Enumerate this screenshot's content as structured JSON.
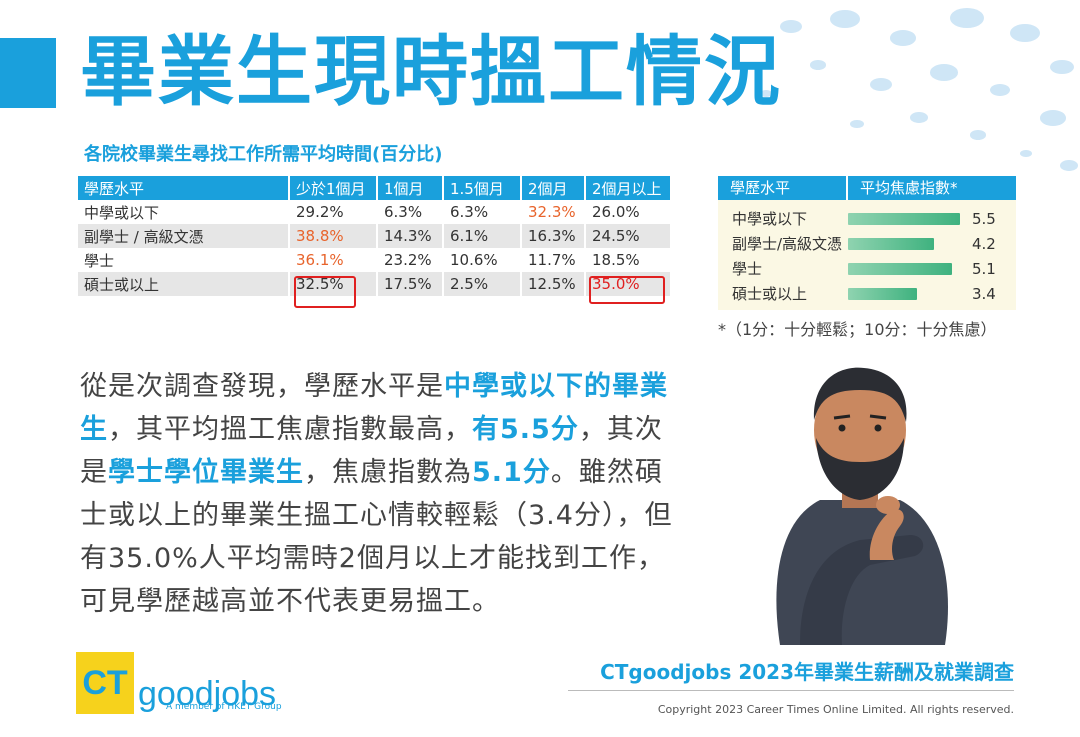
{
  "title": "畢業生現時搵工情況",
  "subtitle": "各院校畢業生尋找工作所需平均時間(百分比)",
  "left_table": {
    "headers": [
      "學歷水平",
      "少於1個月",
      "1個月",
      "1.5個月",
      "2個月",
      "2個月以上"
    ],
    "rows": [
      {
        "label": "中學或以下",
        "values": [
          "29.2%",
          "6.3%",
          "6.3%",
          "32.3%",
          "26.0%"
        ]
      },
      {
        "label": "副學士 / 高級文憑",
        "values": [
          "38.8%",
          "14.3%",
          "6.1%",
          "16.3%",
          "24.5%"
        ]
      },
      {
        "label": "學士",
        "values": [
          "36.1%",
          "23.2%",
          "10.6%",
          "11.7%",
          "18.5%"
        ]
      },
      {
        "label": "碩士或以上",
        "values": [
          "32.5%",
          "17.5%",
          "2.5%",
          "12.5%",
          "35.0%"
        ]
      }
    ]
  },
  "right_table": {
    "headers": [
      "學歷水平",
      "平均焦慮指數*"
    ],
    "rows": [
      {
        "label": "中學或以下",
        "value": "5.5",
        "score": 5.5
      },
      {
        "label": "副學士/高級文憑",
        "value": "4.2",
        "score": 4.2
      },
      {
        "label": "學士",
        "value": "5.1",
        "score": 5.1
      },
      {
        "label": "碩士或以上",
        "value": "3.4",
        "score": 3.4
      }
    ],
    "footnote": "*（1分：十分輕鬆；10分：十分焦慮）"
  },
  "paragraph": [
    {
      "text": "從是次調查發現，學歷水平是",
      "bold": false
    },
    {
      "text": "中學或以下的畢業生",
      "bold": true
    },
    {
      "text": "，其平均搵工焦慮指數最高，",
      "bold": false
    },
    {
      "text": "有5.5分",
      "bold": true
    },
    {
      "text": "，其次是",
      "bold": false
    },
    {
      "text": "學士學位畢業生",
      "bold": true
    },
    {
      "text": "，焦慮指數為",
      "bold": false
    },
    {
      "text": "5.1分",
      "bold": true
    },
    {
      "text": "。雖然碩士或以上的畢業生搵工心情較輕鬆（3.4分），但有35.0%人平均需時2個月以上才能找到工作，可見學歷越高並不代表更易搵工。",
      "bold": false
    }
  ],
  "footer": {
    "logo_ct": "CT",
    "logo_goodjobs": "goodjobs",
    "logo_sub": "A member of HKET Group",
    "survey": "CTgoodjobs 2023年畢業生薪酬及就業調查",
    "copyright": "Copyright 2023 Career Times Online Limited. All rights reserved."
  },
  "colors": {
    "accent": "#1aa0dc",
    "highlight": "#e8642c",
    "box": "#e02020",
    "bar": "#3fb27f",
    "logo_yellow": "#f6d21c"
  },
  "icons": [
    "thinking-man-illustration"
  ]
}
